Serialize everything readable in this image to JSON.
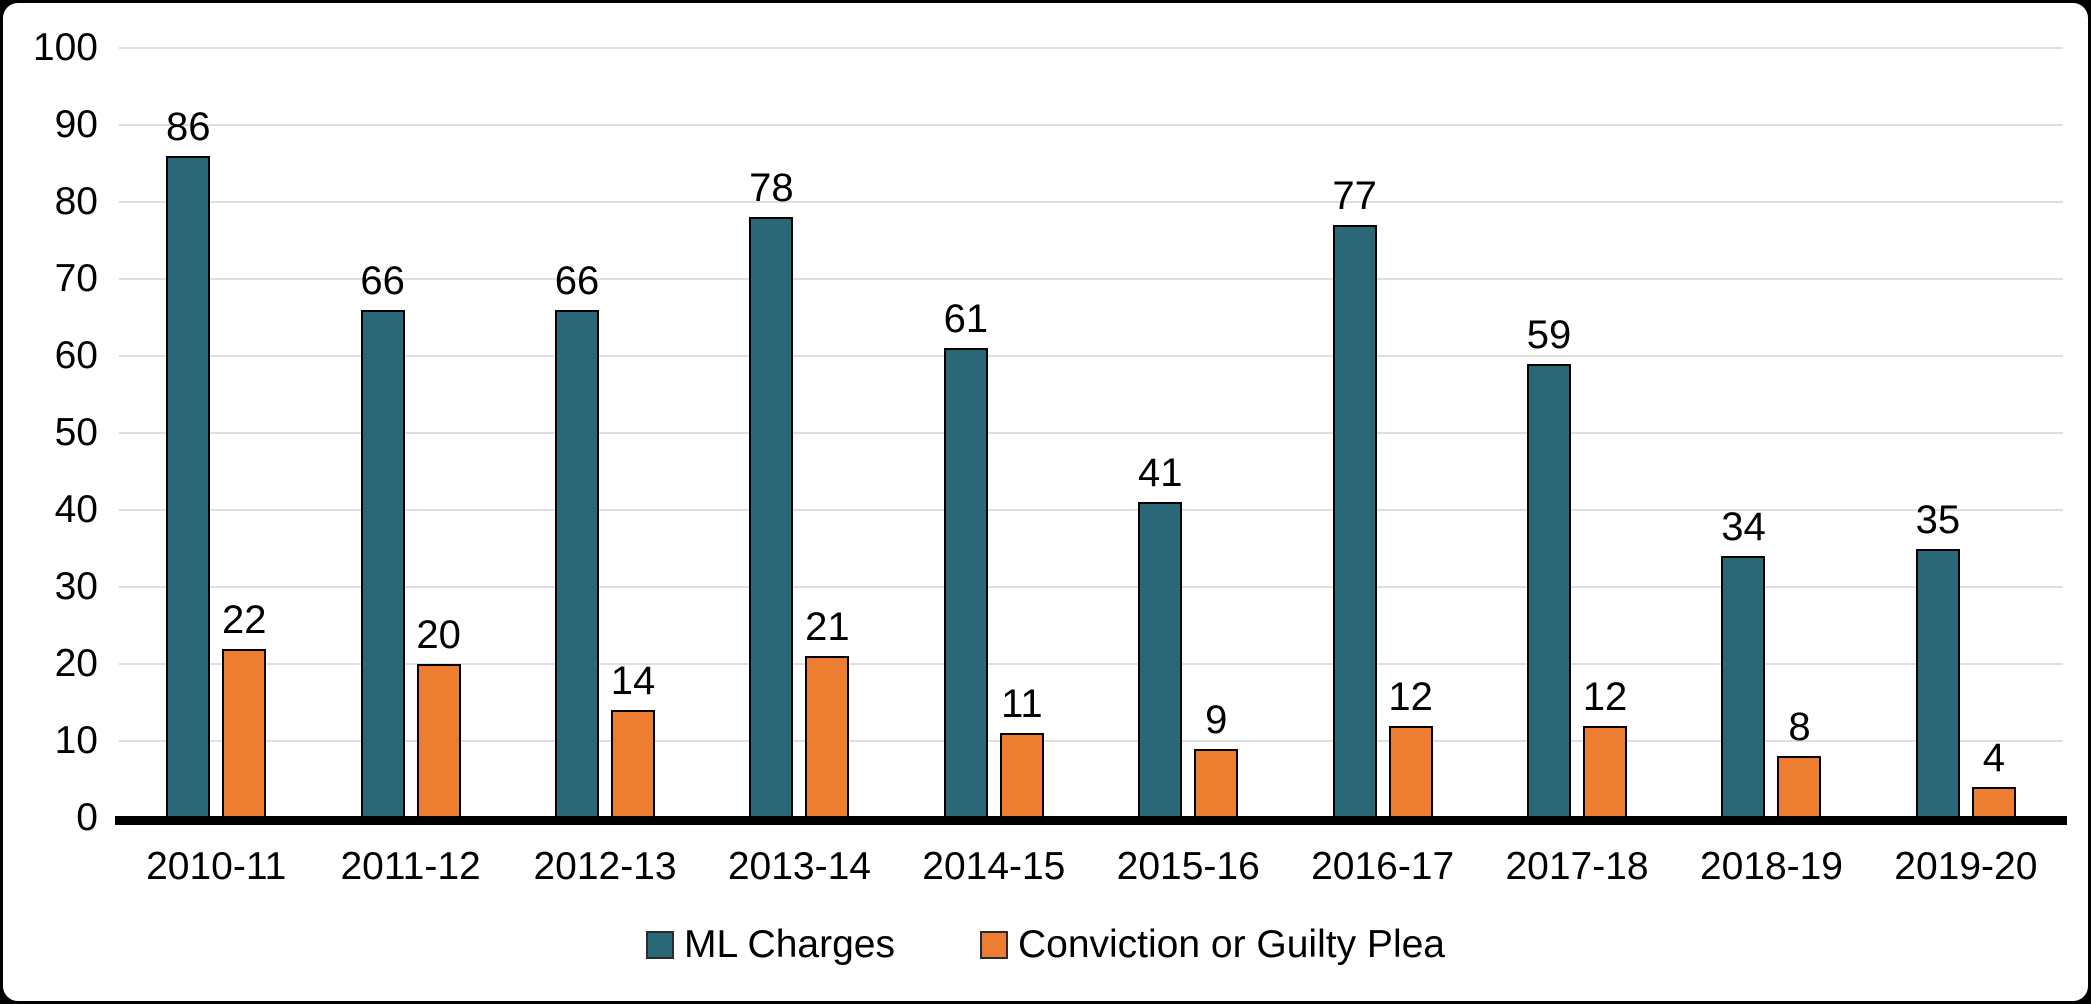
{
  "chart_data": {
    "type": "bar",
    "title": "",
    "xlabel": "",
    "ylabel": "",
    "categories": [
      "2010-11",
      "2011-12",
      "2012-13",
      "2013-14",
      "2014-15",
      "2015-16",
      "2016-17",
      "2017-18",
      "2018-19",
      "2019-20"
    ],
    "series": [
      {
        "name": "ML Charges",
        "color": "#2A6777",
        "values": [
          86,
          66,
          66,
          78,
          61,
          41,
          77,
          59,
          34,
          35
        ]
      },
      {
        "name": "Conviction or Guilty Plea",
        "color": "#ED7D31",
        "values": [
          22,
          20,
          14,
          21,
          11,
          9,
          12,
          12,
          8,
          4
        ]
      }
    ],
    "ylim": [
      0,
      100
    ],
    "yticks": [
      0,
      10,
      20,
      30,
      40,
      50,
      60,
      70,
      80,
      90,
      100
    ],
    "grid": true,
    "data_labels": true,
    "legend_position": "bottom"
  },
  "colors": {
    "bar_outline": "#000000",
    "gridline": "#dfdfdf",
    "axis_line": "#000000",
    "text": "#000000",
    "background": "#ffffff",
    "frame_border": "#000000"
  }
}
